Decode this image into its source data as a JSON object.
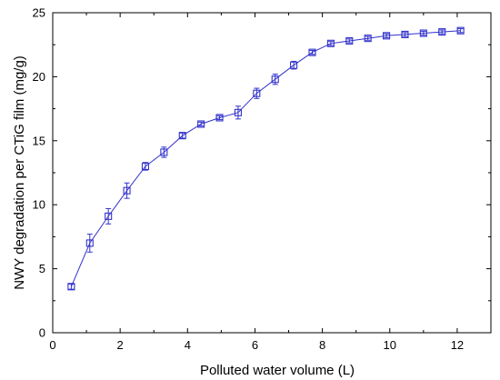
{
  "chart_data": {
    "type": "line",
    "xlabel": "Polluted water volume (L)",
    "ylabel": "NWY degradation per CTiG film (mg/g)",
    "xlim": [
      0,
      13
    ],
    "ylim": [
      0,
      25
    ],
    "xticks": [
      0,
      2,
      4,
      6,
      8,
      10,
      12
    ],
    "yticks": [
      0,
      5,
      10,
      15,
      20,
      25
    ],
    "grid": false,
    "legend": "none",
    "series": [
      {
        "color": "#3333cc",
        "marker": "open-square",
        "x": [
          0.55,
          1.1,
          1.65,
          2.2,
          2.75,
          3.3,
          3.85,
          4.4,
          4.95,
          5.5,
          6.05,
          6.6,
          7.15,
          7.7,
          8.25,
          8.8,
          9.35,
          9.9,
          10.45,
          11.0,
          11.55,
          12.1
        ],
        "y": [
          3.6,
          7.0,
          9.1,
          11.1,
          13.0,
          14.1,
          15.4,
          16.3,
          16.8,
          17.2,
          18.7,
          19.8,
          20.9,
          21.9,
          22.6,
          22.8,
          23.0,
          23.2,
          23.3,
          23.4,
          23.5,
          23.6
        ],
        "error": [
          0.2,
          0.7,
          0.6,
          0.6,
          0.3,
          0.4,
          0.2,
          0.15,
          0.15,
          0.5,
          0.4,
          0.4,
          0.3,
          0.15,
          0.15,
          0.15,
          0.15,
          0.15,
          0.15,
          0.15,
          0.15,
          0.15
        ]
      }
    ]
  }
}
